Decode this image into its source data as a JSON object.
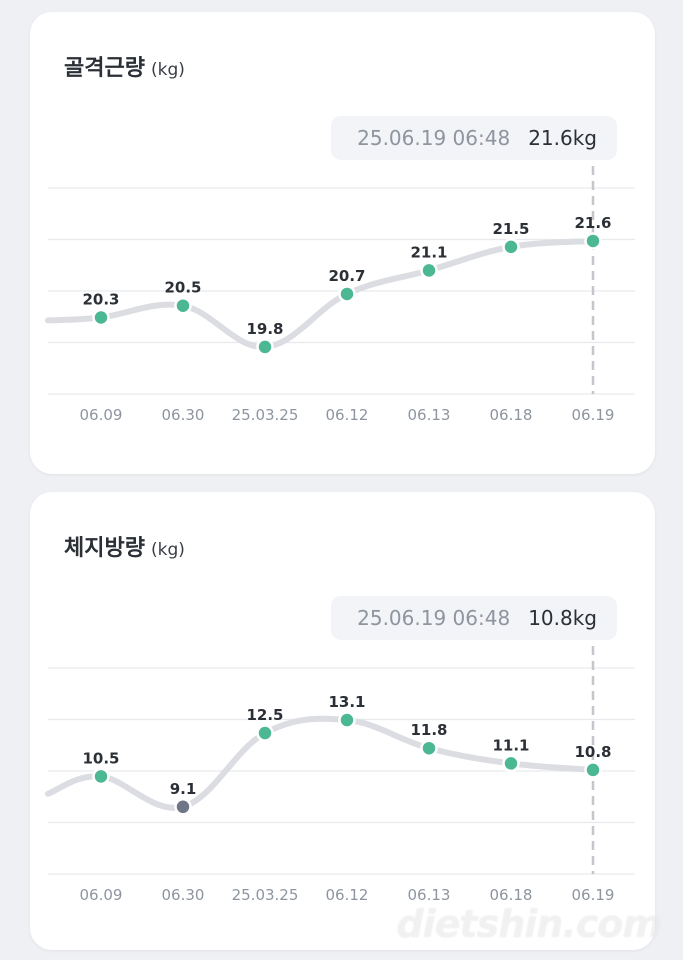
{
  "chart_data": [
    {
      "type": "line",
      "title": "골격근량",
      "unit": "(kg)",
      "categories": [
        "06.09",
        "06.30",
        "25.03.25",
        "06.12",
        "06.13",
        "06.18",
        "06.19"
      ],
      "series": [
        {
          "values": [
            20.3,
            20.5,
            19.8,
            20.7,
            21.1,
            21.5,
            21.6
          ]
        }
      ],
      "point_labels": [
        "20.3",
        "20.5",
        "19.8",
        "20.7",
        "21.1",
        "21.5",
        "21.6"
      ],
      "point_colors": [
        "#4cb893",
        "#4cb893",
        "#4cb893",
        "#4cb893",
        "#4cb893",
        "#4cb893",
        "#4cb893"
      ],
      "ylim": [
        19.0,
        22.5
      ],
      "lead_in_value": 20.25,
      "tooltip": {
        "date": "25.06.19 06:48",
        "value": "21.6kg"
      },
      "grid": true,
      "legend": "none"
    },
    {
      "type": "line",
      "title": "체지방량",
      "unit": "(kg)",
      "categories": [
        "06.09",
        "06.30",
        "25.03.25",
        "06.12",
        "06.13",
        "06.18",
        "06.19"
      ],
      "series": [
        {
          "values": [
            10.5,
            9.1,
            12.5,
            13.1,
            11.8,
            11.1,
            10.8
          ]
        }
      ],
      "point_labels": [
        "10.5",
        "9.1",
        "12.5",
        "13.1",
        "11.8",
        "11.1",
        "10.8"
      ],
      "point_colors": [
        "#4cb893",
        "#6e7687",
        "#4cb893",
        "#4cb893",
        "#4cb893",
        "#4cb893",
        "#4cb893"
      ],
      "ylim": [
        6.0,
        15.5
      ],
      "lead_in_value": 9.7,
      "tooltip": {
        "date": "25.06.19 06:48",
        "value": "10.8kg"
      },
      "grid": true,
      "legend": "none"
    }
  ],
  "watermark": "dietshin.com",
  "colors": {
    "line": "#dcdde2",
    "point": "#4cb893",
    "point_low": "#6e7687",
    "grid": "#e8e9ec",
    "dashed": "#c4c6cb"
  }
}
